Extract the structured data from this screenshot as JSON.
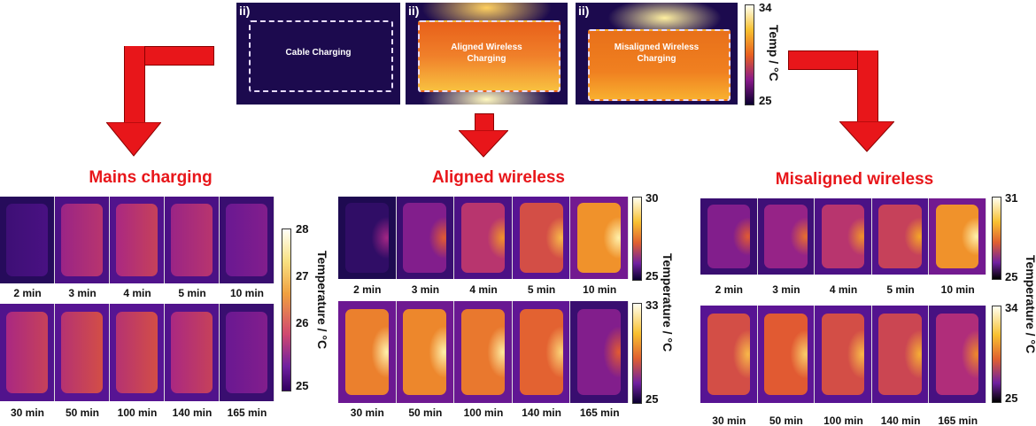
{
  "top": {
    "panels": [
      {
        "tag": "ii)",
        "label1": "Cable Charging",
        "label2": ""
      },
      {
        "tag": "ii)",
        "label1": "Aligned Wireless",
        "label2": "Charging"
      },
      {
        "tag": "ii)",
        "label1": "Misaligned Wireless",
        "label2": "Charging"
      }
    ],
    "colorbar": {
      "max": "34",
      "min": "25",
      "label": "Temp / °C"
    }
  },
  "groups": [
    {
      "title": "Mains charging",
      "row1_labels": [
        "2 min",
        "3 min",
        "4 min",
        "5 min",
        "10 min"
      ],
      "row2_labels": [
        "30 min",
        "50 min",
        "100 min",
        "140 min",
        "165 min"
      ],
      "colorbar_ticks": [
        "28",
        "27",
        "26",
        "25"
      ],
      "colorbar_label": "Temperature / °C"
    },
    {
      "title": "Aligned wireless",
      "row1_labels": [
        "2 min",
        "3 min",
        "4 min",
        "5 min",
        "10 min"
      ],
      "row2_labels": [
        "30 min",
        "50 min",
        "100 min",
        "140 min",
        "165 min"
      ],
      "colorbar1": {
        "max": "30",
        "min": "25"
      },
      "colorbar2": {
        "max": "33",
        "min": "25"
      },
      "colorbar_label": "Temperature / °C"
    },
    {
      "title": "Misaligned wireless",
      "row1_labels": [
        "2 min",
        "3 min",
        "4 min",
        "5 min",
        "10 min"
      ],
      "row2_labels": [
        "30 min",
        "50 min",
        "100 min",
        "140 min",
        "165 min"
      ],
      "colorbar1": {
        "max": "31",
        "min": "25"
      },
      "colorbar2": {
        "max": "34",
        "min": "25"
      },
      "colorbar_label": "Temperature / °C"
    }
  ],
  "colors": {
    "arrow": "#e8161a",
    "title": "#e8161a"
  }
}
